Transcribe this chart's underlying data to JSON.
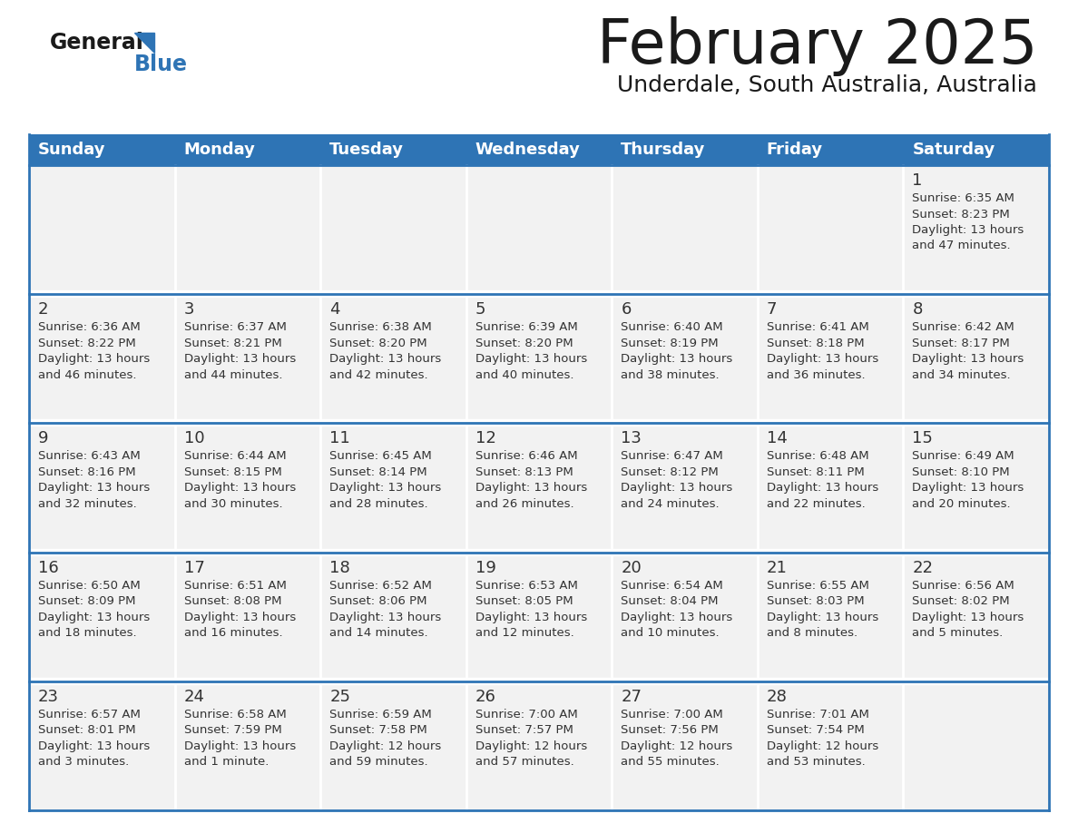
{
  "title": "February 2025",
  "subtitle": "Underdale, South Australia, Australia",
  "header_bg": "#2E74B5",
  "header_text_color": "#FFFFFF",
  "cell_bg": "#F2F2F2",
  "border_color": "#2E74B5",
  "text_color": "#333333",
  "days_of_week": [
    "Sunday",
    "Monday",
    "Tuesday",
    "Wednesday",
    "Thursday",
    "Friday",
    "Saturday"
  ],
  "weeks": [
    [
      {
        "day": "",
        "info": ""
      },
      {
        "day": "",
        "info": ""
      },
      {
        "day": "",
        "info": ""
      },
      {
        "day": "",
        "info": ""
      },
      {
        "day": "",
        "info": ""
      },
      {
        "day": "",
        "info": ""
      },
      {
        "day": "1",
        "info": "Sunrise: 6:35 AM\nSunset: 8:23 PM\nDaylight: 13 hours\nand 47 minutes."
      }
    ],
    [
      {
        "day": "2",
        "info": "Sunrise: 6:36 AM\nSunset: 8:22 PM\nDaylight: 13 hours\nand 46 minutes."
      },
      {
        "day": "3",
        "info": "Sunrise: 6:37 AM\nSunset: 8:21 PM\nDaylight: 13 hours\nand 44 minutes."
      },
      {
        "day": "4",
        "info": "Sunrise: 6:38 AM\nSunset: 8:20 PM\nDaylight: 13 hours\nand 42 minutes."
      },
      {
        "day": "5",
        "info": "Sunrise: 6:39 AM\nSunset: 8:20 PM\nDaylight: 13 hours\nand 40 minutes."
      },
      {
        "day": "6",
        "info": "Sunrise: 6:40 AM\nSunset: 8:19 PM\nDaylight: 13 hours\nand 38 minutes."
      },
      {
        "day": "7",
        "info": "Sunrise: 6:41 AM\nSunset: 8:18 PM\nDaylight: 13 hours\nand 36 minutes."
      },
      {
        "day": "8",
        "info": "Sunrise: 6:42 AM\nSunset: 8:17 PM\nDaylight: 13 hours\nand 34 minutes."
      }
    ],
    [
      {
        "day": "9",
        "info": "Sunrise: 6:43 AM\nSunset: 8:16 PM\nDaylight: 13 hours\nand 32 minutes."
      },
      {
        "day": "10",
        "info": "Sunrise: 6:44 AM\nSunset: 8:15 PM\nDaylight: 13 hours\nand 30 minutes."
      },
      {
        "day": "11",
        "info": "Sunrise: 6:45 AM\nSunset: 8:14 PM\nDaylight: 13 hours\nand 28 minutes."
      },
      {
        "day": "12",
        "info": "Sunrise: 6:46 AM\nSunset: 8:13 PM\nDaylight: 13 hours\nand 26 minutes."
      },
      {
        "day": "13",
        "info": "Sunrise: 6:47 AM\nSunset: 8:12 PM\nDaylight: 13 hours\nand 24 minutes."
      },
      {
        "day": "14",
        "info": "Sunrise: 6:48 AM\nSunset: 8:11 PM\nDaylight: 13 hours\nand 22 minutes."
      },
      {
        "day": "15",
        "info": "Sunrise: 6:49 AM\nSunset: 8:10 PM\nDaylight: 13 hours\nand 20 minutes."
      }
    ],
    [
      {
        "day": "16",
        "info": "Sunrise: 6:50 AM\nSunset: 8:09 PM\nDaylight: 13 hours\nand 18 minutes."
      },
      {
        "day": "17",
        "info": "Sunrise: 6:51 AM\nSunset: 8:08 PM\nDaylight: 13 hours\nand 16 minutes."
      },
      {
        "day": "18",
        "info": "Sunrise: 6:52 AM\nSunset: 8:06 PM\nDaylight: 13 hours\nand 14 minutes."
      },
      {
        "day": "19",
        "info": "Sunrise: 6:53 AM\nSunset: 8:05 PM\nDaylight: 13 hours\nand 12 minutes."
      },
      {
        "day": "20",
        "info": "Sunrise: 6:54 AM\nSunset: 8:04 PM\nDaylight: 13 hours\nand 10 minutes."
      },
      {
        "day": "21",
        "info": "Sunrise: 6:55 AM\nSunset: 8:03 PM\nDaylight: 13 hours\nand 8 minutes."
      },
      {
        "day": "22",
        "info": "Sunrise: 6:56 AM\nSunset: 8:02 PM\nDaylight: 13 hours\nand 5 minutes."
      }
    ],
    [
      {
        "day": "23",
        "info": "Sunrise: 6:57 AM\nSunset: 8:01 PM\nDaylight: 13 hours\nand 3 minutes."
      },
      {
        "day": "24",
        "info": "Sunrise: 6:58 AM\nSunset: 7:59 PM\nDaylight: 13 hours\nand 1 minute."
      },
      {
        "day": "25",
        "info": "Sunrise: 6:59 AM\nSunset: 7:58 PM\nDaylight: 12 hours\nand 59 minutes."
      },
      {
        "day": "26",
        "info": "Sunrise: 7:00 AM\nSunset: 7:57 PM\nDaylight: 12 hours\nand 57 minutes."
      },
      {
        "day": "27",
        "info": "Sunrise: 7:00 AM\nSunset: 7:56 PM\nDaylight: 12 hours\nand 55 minutes."
      },
      {
        "day": "28",
        "info": "Sunrise: 7:01 AM\nSunset: 7:54 PM\nDaylight: 12 hours\nand 53 minutes."
      },
      {
        "day": "",
        "info": ""
      }
    ]
  ]
}
